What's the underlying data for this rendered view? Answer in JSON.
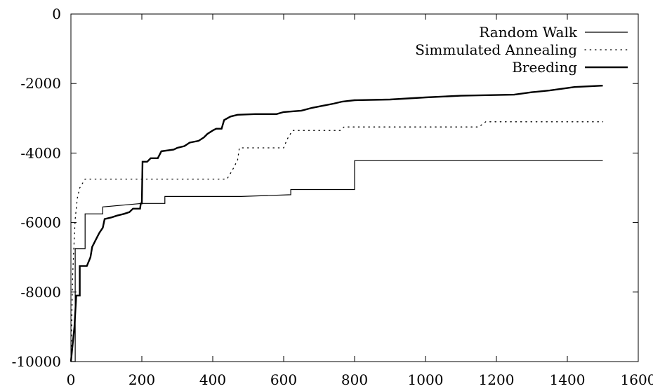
{
  "chart_data": {
    "type": "line",
    "title": "",
    "xlabel": "",
    "ylabel": "",
    "xlim": [
      0,
      1600
    ],
    "ylim": [
      -10000,
      0
    ],
    "xticks": [
      0,
      200,
      400,
      600,
      800,
      1000,
      1200,
      1400,
      1600
    ],
    "yticks": [
      0,
      -2000,
      -4000,
      -6000,
      -8000,
      -10000
    ],
    "xtick_labels": [
      "0",
      "200",
      "400",
      "600",
      "800",
      "1000",
      "1200",
      "1400",
      "1600"
    ],
    "ytick_labels": [
      "0",
      "-2000",
      "-4000",
      "-6000",
      "-8000",
      "-10000"
    ],
    "grid": false,
    "legend_position": "top-right",
    "series": [
      {
        "name": "Random Walk",
        "style": "thin-solid",
        "color": "#000000",
        "points": [
          [
            0,
            -10000
          ],
          [
            12,
            -10000
          ],
          [
            12,
            -6750
          ],
          [
            40,
            -6750
          ],
          [
            40,
            -5750
          ],
          [
            90,
            -5750
          ],
          [
            90,
            -5550
          ],
          [
            200,
            -5450
          ],
          [
            265,
            -5450
          ],
          [
            265,
            -5250
          ],
          [
            480,
            -5250
          ],
          [
            620,
            -5200
          ],
          [
            620,
            -5050
          ],
          [
            800,
            -5050
          ],
          [
            800,
            -4220
          ],
          [
            1500,
            -4220
          ]
        ]
      },
      {
        "name": "Simmulated Annealing",
        "style": "dotted",
        "color": "#000000",
        "points": [
          [
            0,
            -10000
          ],
          [
            5,
            -7500
          ],
          [
            8,
            -6800
          ],
          [
            12,
            -5900
          ],
          [
            18,
            -5300
          ],
          [
            25,
            -5000
          ],
          [
            40,
            -4750
          ],
          [
            440,
            -4750
          ],
          [
            455,
            -4500
          ],
          [
            470,
            -4200
          ],
          [
            475,
            -3850
          ],
          [
            600,
            -3850
          ],
          [
            610,
            -3600
          ],
          [
            625,
            -3350
          ],
          [
            760,
            -3350
          ],
          [
            770,
            -3250
          ],
          [
            1150,
            -3250
          ],
          [
            1170,
            -3100
          ],
          [
            1500,
            -3100
          ]
        ]
      },
      {
        "name": "Breeding",
        "style": "thick-solid",
        "color": "#000000",
        "points": [
          [
            0,
            -10000
          ],
          [
            10,
            -9000
          ],
          [
            15,
            -8100
          ],
          [
            25,
            -8100
          ],
          [
            25,
            -7250
          ],
          [
            45,
            -7250
          ],
          [
            55,
            -7000
          ],
          [
            60,
            -6700
          ],
          [
            70,
            -6500
          ],
          [
            80,
            -6300
          ],
          [
            90,
            -6150
          ],
          [
            95,
            -5900
          ],
          [
            115,
            -5850
          ],
          [
            130,
            -5800
          ],
          [
            150,
            -5750
          ],
          [
            165,
            -5700
          ],
          [
            175,
            -5600
          ],
          [
            195,
            -5600
          ],
          [
            197,
            -5450
          ],
          [
            200,
            -5450
          ],
          [
            202,
            -4250
          ],
          [
            215,
            -4250
          ],
          [
            225,
            -4150
          ],
          [
            245,
            -4150
          ],
          [
            255,
            -3950
          ],
          [
            290,
            -3900
          ],
          [
            300,
            -3850
          ],
          [
            320,
            -3800
          ],
          [
            335,
            -3700
          ],
          [
            360,
            -3650
          ],
          [
            375,
            -3550
          ],
          [
            385,
            -3450
          ],
          [
            400,
            -3350
          ],
          [
            410,
            -3300
          ],
          [
            425,
            -3300
          ],
          [
            432,
            -3050
          ],
          [
            450,
            -2950
          ],
          [
            470,
            -2900
          ],
          [
            520,
            -2880
          ],
          [
            580,
            -2880
          ],
          [
            600,
            -2820
          ],
          [
            650,
            -2780
          ],
          [
            680,
            -2700
          ],
          [
            710,
            -2640
          ],
          [
            740,
            -2580
          ],
          [
            765,
            -2520
          ],
          [
            800,
            -2480
          ],
          [
            900,
            -2460
          ],
          [
            1000,
            -2400
          ],
          [
            1100,
            -2350
          ],
          [
            1250,
            -2320
          ],
          [
            1300,
            -2250
          ],
          [
            1350,
            -2200
          ],
          [
            1420,
            -2100
          ],
          [
            1500,
            -2060
          ]
        ]
      }
    ]
  }
}
